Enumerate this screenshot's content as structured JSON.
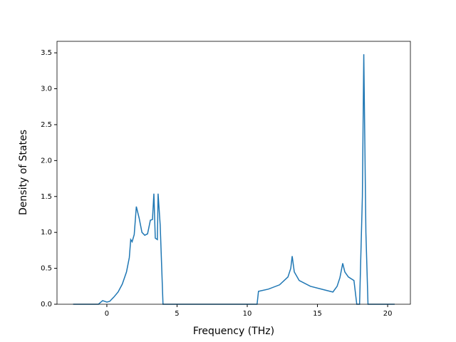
{
  "chart_data": {
    "type": "line",
    "xlabel": "Frequency (THz)",
    "ylabel": "Density of States",
    "x": [
      -2.4,
      -0.6,
      -0.3,
      0,
      0.2,
      0.5,
      0.8,
      1.1,
      1.4,
      1.6,
      1.7,
      1.8,
      1.95,
      2.1,
      2.3,
      2.5,
      2.7,
      2.9,
      3.1,
      3.25,
      3.35,
      3.45,
      3.6,
      3.65,
      3.8,
      4.0,
      10.7,
      10.8,
      11.5,
      12.3,
      12.9,
      13.1,
      13.2,
      13.35,
      13.7,
      14.5,
      15.5,
      16.1,
      16.4,
      16.6,
      16.8,
      16.95,
      17.2,
      17.6,
      17.8,
      18.0,
      18.2,
      18.3,
      18.45,
      18.6,
      20.5
    ],
    "series": [
      {
        "name": "DOS",
        "color": "#1f77b4",
        "values": [
          0,
          0,
          0.05,
          0.03,
          0.04,
          0.1,
          0.17,
          0.28,
          0.45,
          0.65,
          0.9,
          0.87,
          0.97,
          1.36,
          1.2,
          1.0,
          0.96,
          0.98,
          1.17,
          1.18,
          1.54,
          0.92,
          0.9,
          1.54,
          1.1,
          0,
          0,
          0.18,
          0.21,
          0.27,
          0.38,
          0.5,
          0.67,
          0.45,
          0.33,
          0.25,
          0.2,
          0.17,
          0.25,
          0.37,
          0.57,
          0.45,
          0.38,
          0.33,
          0,
          0,
          1.5,
          3.48,
          1.0,
          0,
          0
        ]
      }
    ],
    "xlim": [
      -3.55,
      21.62
    ],
    "ylim": [
      0,
      3.66
    ],
    "xticks": [
      0,
      5,
      10,
      15,
      20
    ],
    "yticks": [
      {
        "value": 0,
        "label": "0.0"
      },
      {
        "value": 0.5,
        "label": "0.5"
      },
      {
        "value": 1,
        "label": "1.0"
      },
      {
        "value": 1.5,
        "label": "1.5"
      },
      {
        "value": 2,
        "label": "2.0"
      },
      {
        "value": 2.5,
        "label": "2.5"
      },
      {
        "value": 3,
        "label": "3.0"
      },
      {
        "value": 3.5,
        "label": "3.5"
      }
    ]
  }
}
